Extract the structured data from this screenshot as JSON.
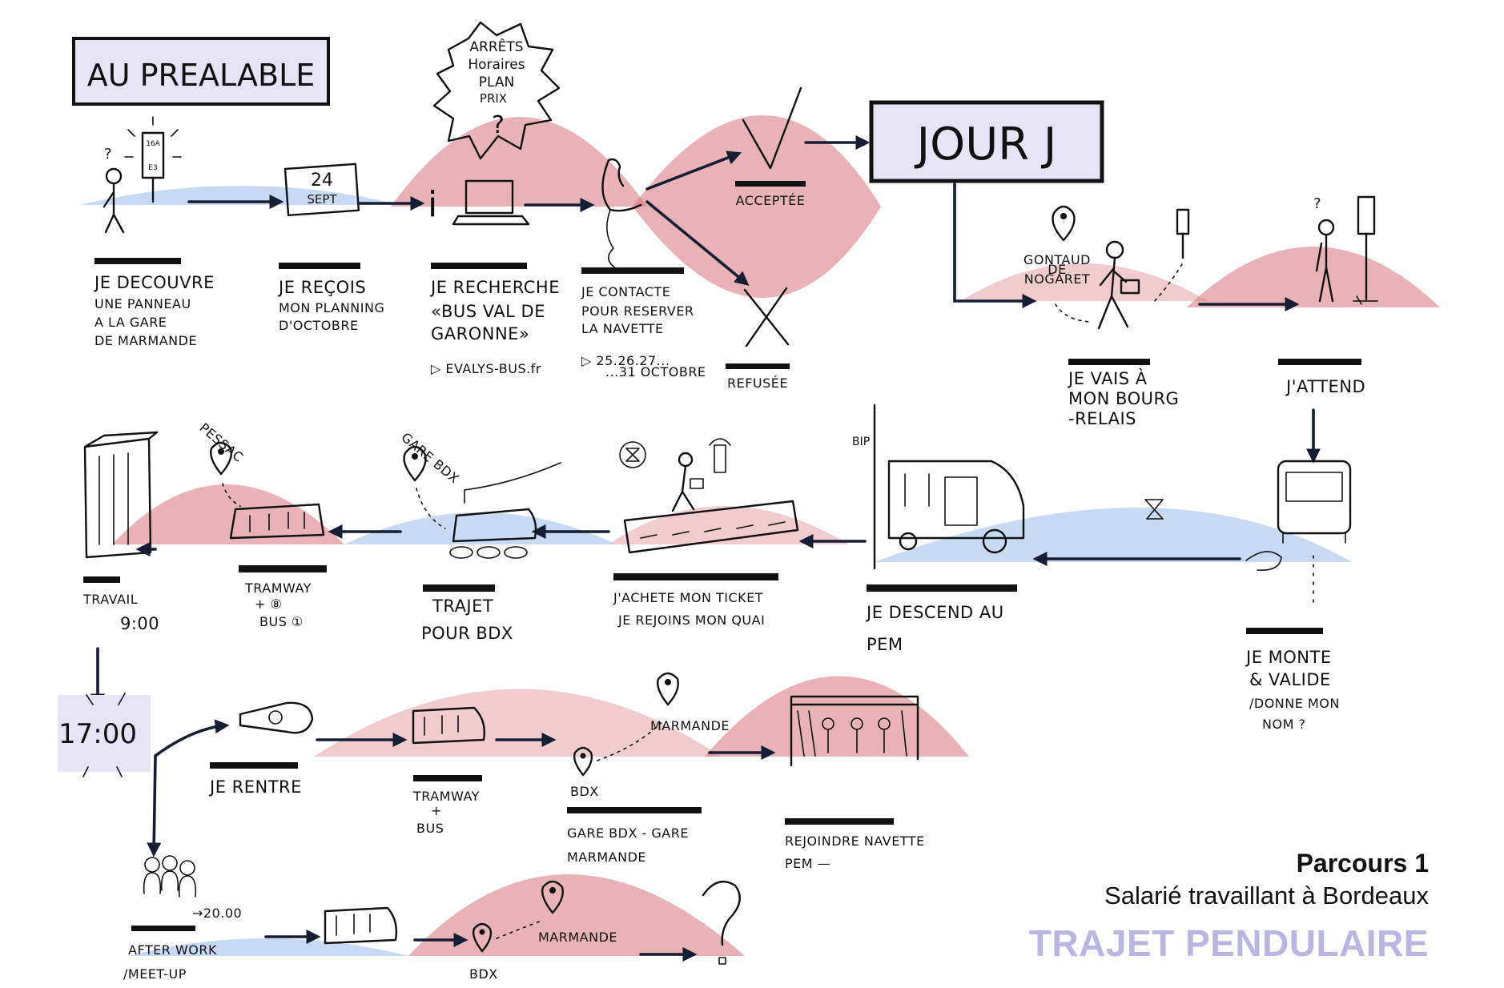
{
  "header": {
    "title": "AU PREALABLE",
    "jour": "JOUR J"
  },
  "burst": [
    "ARRÊTS",
    "Horaires",
    "PLAN",
    "PRIX",
    "?"
  ],
  "row1": {
    "decouvre": [
      "JE DECOUVRE",
      "UNE PANNEAU",
      "A LA GARE",
      "DE MARMANDE"
    ],
    "sign": [
      "16A",
      "E3"
    ],
    "calendar": [
      "24",
      "SEPT"
    ],
    "recois": [
      "JE REÇOIS",
      "MON PLANNING",
      "D'OCTOBRE"
    ],
    "recherche": [
      "JE RECHERCHE",
      "«BUS VAL DE",
      "GARONNE»",
      "▷ EVALYS-BUS.fr"
    ],
    "contacte": [
      "JE CONTACTE",
      "POUR RESERVER",
      "LA NAVETTE",
      "▷ 25.26.27...",
      "...31 OCTOBRE"
    ],
    "acceptee": "ACCEPTÉE",
    "refusee": "REFUSÉE"
  },
  "jourj": {
    "pin": [
      "GONTAUD",
      "DE",
      "NOGARET"
    ],
    "bourg": [
      "JE VAIS À",
      "MON BOURG",
      "-RELAIS"
    ],
    "attend": "J'ATTEND"
  },
  "row2": {
    "travail": [
      "TRAVAIL",
      "9:00"
    ],
    "pessac": "PESSAC",
    "tram": [
      "TRAMWAY",
      "+ ⑧",
      "BUS ①"
    ],
    "gare": "GARE BDX",
    "trajet": [
      "TRAJET",
      "POUR BDX"
    ],
    "ticket": [
      "J'ACHETE MON TICKET",
      "JE REJOINS MON QUAI"
    ],
    "bip": "BIP",
    "descend": [
      "JE DESCEND AU",
      "PEM"
    ],
    "monte": [
      "JE MONTE",
      "& VALIDE",
      "/DONNE MON",
      "NOM ?"
    ]
  },
  "row3": {
    "time": "17:00",
    "rentre": "JE RENTRE",
    "tram": [
      "TRAMWAY",
      "+",
      "BUS"
    ],
    "marmande": "MARMANDE",
    "bdx": "BDX",
    "gare": [
      "GARE BDX - GARE",
      "MARMANDE"
    ],
    "navette": [
      "REJOINDRE NAVETTE",
      "PEM —"
    ]
  },
  "row4": {
    "afterwork": [
      "AFTER WORK",
      "/MEET-UP"
    ],
    "time": "→20.00",
    "marmande": "MARMANDE",
    "bdx": "BDX"
  },
  "legend": {
    "title": "Parcours 1",
    "subtitle": "Salarié travaillant à Bordeaux",
    "category": "TRAJET PENDULAIRE"
  },
  "colors": {
    "red_zone": "#d6737a",
    "blue_zone": "#a9c5ec",
    "header_fill": "#e6e4f5",
    "legend_accent": "#b9b6e2"
  }
}
